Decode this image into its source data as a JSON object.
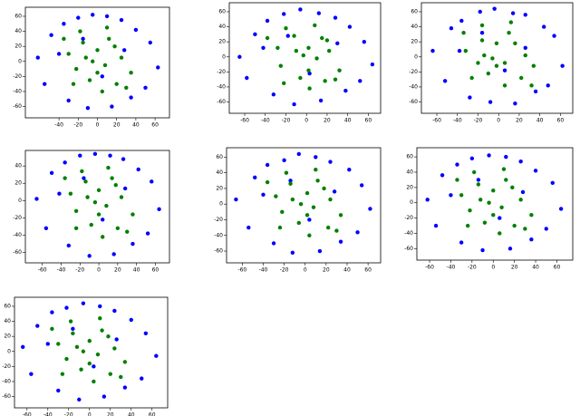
{
  "chart_data": [
    {
      "type": "scatter",
      "xlim": [
        -75,
        75
      ],
      "ylim": [
        -75,
        72
      ],
      "xticks": [
        -40,
        -20,
        0,
        20,
        40,
        60
      ],
      "yticks": [
        -60,
        -40,
        -20,
        0,
        20,
        40,
        60
      ],
      "series": [
        {
          "color": "#0000ff",
          "x": [
            -62,
            -48,
            -35,
            -20,
            -5,
            10,
            25,
            40,
            55,
            63,
            -55,
            -30,
            -10,
            15,
            35,
            50,
            -40,
            5,
            28,
            -15
          ],
          "values": [
            5,
            35,
            50,
            58,
            62,
            60,
            55,
            42,
            25,
            -8,
            -30,
            -52,
            -62,
            -60,
            -48,
            -35,
            10,
            -20,
            15,
            30
          ]
        },
        {
          "color": "#008000",
          "x": [
            -30,
            -15,
            0,
            12,
            25,
            -22,
            -8,
            8,
            20,
            35,
            -35,
            -18,
            5,
            18,
            -5,
            30,
            -25,
            10,
            0,
            -12
          ],
          "values": [
            10,
            25,
            15,
            30,
            5,
            -10,
            -25,
            -5,
            -30,
            -15,
            30,
            40,
            -40,
            20,
            0,
            -35,
            -30,
            45,
            -15,
            5
          ]
        }
      ]
    },
    {
      "type": "scatter",
      "xlim": [
        -75,
        72
      ],
      "ylim": [
        -75,
        72
      ],
      "xticks": [
        -60,
        -40,
        -20,
        0,
        20,
        40,
        60
      ],
      "yticks": [
        -60,
        -40,
        -20,
        0,
        20,
        40,
        60
      ],
      "series": [
        {
          "color": "#0000ff",
          "x": [
            -65,
            -50,
            -38,
            -22,
            -6,
            12,
            28,
            42,
            56,
            64,
            -58,
            -32,
            -12,
            14,
            38,
            52,
            -42,
            3,
            30,
            -18
          ],
          "values": [
            0,
            30,
            48,
            57,
            63,
            58,
            52,
            40,
            20,
            -10,
            -28,
            -50,
            -63,
            -58,
            -45,
            -32,
            12,
            -22,
            18,
            28
          ]
        },
        {
          "color": "#008000",
          "x": [
            -28,
            -12,
            2,
            15,
            22,
            -25,
            -6,
            10,
            18,
            32,
            -38,
            -20,
            3,
            20,
            -3,
            28,
            -22,
            8,
            2,
            -10
          ],
          "values": [
            12,
            28,
            12,
            25,
            8,
            -12,
            -28,
            -2,
            -32,
            -18,
            25,
            38,
            -42,
            22,
            2,
            -30,
            -35,
            42,
            -18,
            8
          ]
        }
      ]
    },
    {
      "type": "scatter",
      "xlim": [
        -75,
        72
      ],
      "ylim": [
        -75,
        72
      ],
      "xticks": [
        -60,
        -40,
        -20,
        0,
        20,
        40,
        60
      ],
      "yticks": [
        -60,
        -40,
        -20,
        0,
        20,
        40,
        60
      ],
      "series": [
        {
          "color": "#0000ff",
          "x": [
            -64,
            -46,
            -36,
            -18,
            -4,
            14,
            26,
            44,
            54,
            62,
            -52,
            -28,
            -8,
            16,
            36,
            48,
            -38,
            6,
            26,
            -16
          ],
          "values": [
            8,
            38,
            48,
            60,
            64,
            58,
            56,
            40,
            28,
            -12,
            -32,
            -54,
            -60,
            -62,
            -46,
            -38,
            8,
            -18,
            12,
            32
          ]
        },
        {
          "color": "#008000",
          "x": [
            -32,
            -16,
            -2,
            10,
            26,
            -20,
            -10,
            6,
            22,
            34,
            -34,
            -16,
            6,
            16,
            -6,
            32,
            -26,
            12,
            -2,
            -14
          ],
          "values": [
            8,
            22,
            18,
            32,
            2,
            -8,
            -22,
            -8,
            -28,
            -12,
            32,
            42,
            -38,
            18,
            -2,
            -38,
            -28,
            46,
            -12,
            2
          ]
        }
      ]
    },
    {
      "type": "scatter",
      "xlim": [
        -78,
        75
      ],
      "ylim": [
        -72,
        58
      ],
      "xticks": [
        -60,
        -40,
        -20,
        0,
        20,
        40,
        60
      ],
      "yticks": [
        -60,
        -40,
        -20,
        0,
        20,
        40
      ],
      "series": [
        {
          "color": "#0000ff",
          "x": [
            -66,
            -50,
            -36,
            -20,
            -4,
            12,
            26,
            42,
            56,
            64,
            -56,
            -32,
            -10,
            16,
            36,
            52,
            -42,
            4,
            28,
            -16
          ],
          "values": [
            2,
            32,
            44,
            52,
            54,
            52,
            48,
            36,
            22,
            -10,
            -32,
            -52,
            -64,
            -62,
            -50,
            -38,
            8,
            -22,
            14,
            26
          ]
        },
        {
          "color": "#008000",
          "x": [
            -30,
            -14,
            0,
            14,
            24,
            -24,
            -8,
            8,
            20,
            36,
            -36,
            -18,
            4,
            18,
            -4,
            30,
            -24,
            10,
            0,
            -12
          ],
          "values": [
            8,
            22,
            12,
            26,
            4,
            -12,
            -28,
            -6,
            -32,
            -16,
            26,
            34,
            -42,
            18,
            -2,
            -36,
            -32,
            38,
            -16,
            4
          ]
        }
      ]
    },
    {
      "type": "scatter",
      "xlim": [
        -75,
        72
      ],
      "ylim": [
        -75,
        72
      ],
      "xticks": [
        -60,
        -40,
        -20,
        0,
        20,
        40,
        60
      ],
      "yticks": [
        -60,
        -40,
        -20,
        0,
        20,
        40,
        60
      ],
      "series": [
        {
          "color": "#0000ff",
          "x": [
            -66,
            -48,
            -36,
            -20,
            -6,
            10,
            24,
            42,
            54,
            62,
            -54,
            -30,
            -12,
            14,
            34,
            50,
            -40,
            4,
            28,
            -14
          ],
          "values": [
            6,
            34,
            50,
            56,
            64,
            60,
            54,
            44,
            24,
            -6,
            -30,
            -50,
            -62,
            -60,
            -48,
            -36,
            12,
            -20,
            16,
            30
          ]
        },
        {
          "color": "#008000",
          "x": [
            -28,
            -14,
            2,
            12,
            24,
            -22,
            -6,
            8,
            22,
            34,
            -36,
            -18,
            4,
            18,
            -4,
            30,
            -24,
            10,
            2,
            -12
          ],
          "values": [
            10,
            26,
            14,
            30,
            6,
            -10,
            -24,
            -4,
            -30,
            -14,
            28,
            40,
            -40,
            20,
            0,
            -34,
            -30,
            44,
            -14,
            6
          ]
        }
      ]
    },
    {
      "type": "scatter",
      "xlim": [
        -72,
        75
      ],
      "ylim": [
        -75,
        72
      ],
      "xticks": [
        -60,
        -40,
        -20,
        0,
        20,
        40,
        60
      ],
      "yticks": [
        -60,
        -40,
        -20,
        0,
        20,
        40,
        60
      ],
      "series": [
        {
          "color": "#0000ff",
          "x": [
            -62,
            -48,
            -34,
            -20,
            -4,
            12,
            26,
            40,
            56,
            64,
            -54,
            -30,
            -10,
            16,
            36,
            50,
            -40,
            6,
            28,
            -14
          ],
          "values": [
            4,
            36,
            50,
            58,
            62,
            60,
            54,
            42,
            26,
            -8,
            -30,
            -52,
            -62,
            -60,
            -48,
            -34,
            10,
            -20,
            14,
            30
          ]
        },
        {
          "color": "#008000",
          "x": [
            -30,
            -14,
            0,
            12,
            26,
            -22,
            -8,
            8,
            20,
            36,
            -34,
            -18,
            6,
            18,
            -4,
            30,
            -24,
            10,
            0,
            -12
          ],
          "values": [
            10,
            24,
            16,
            30,
            4,
            -10,
            -26,
            -6,
            -30,
            -16,
            30,
            40,
            -40,
            20,
            0,
            -34,
            -30,
            44,
            -16,
            4
          ]
        }
      ]
    },
    {
      "type": "scatter",
      "xlim": [
        -72,
        75
      ],
      "ylim": [
        -75,
        72
      ],
      "xticks": [
        -60,
        -40,
        -20,
        0,
        20,
        40,
        60
      ],
      "yticks": [
        -60,
        -40,
        -20,
        0,
        20,
        40,
        60
      ],
      "series": [
        {
          "color": "#0000ff",
          "x": [
            -64,
            -50,
            -36,
            -22,
            -6,
            10,
            24,
            40,
            54,
            64,
            -56,
            -30,
            -10,
            14,
            34,
            50,
            -40,
            4,
            26,
            -16
          ],
          "values": [
            6,
            34,
            52,
            58,
            64,
            60,
            54,
            42,
            24,
            -6,
            -30,
            -52,
            -64,
            -60,
            -48,
            -36,
            10,
            -20,
            16,
            30
          ]
        },
        {
          "color": "#008000",
          "x": [
            -30,
            -16,
            0,
            12,
            24,
            -22,
            -8,
            8,
            20,
            34,
            -36,
            -18,
            4,
            18,
            -6,
            30,
            -26,
            10,
            0,
            -12
          ],
          "values": [
            10,
            24,
            14,
            28,
            4,
            -10,
            -24,
            -4,
            -30,
            -14,
            30,
            40,
            -40,
            20,
            0,
            -34,
            -30,
            44,
            -16,
            6
          ]
        }
      ]
    }
  ]
}
